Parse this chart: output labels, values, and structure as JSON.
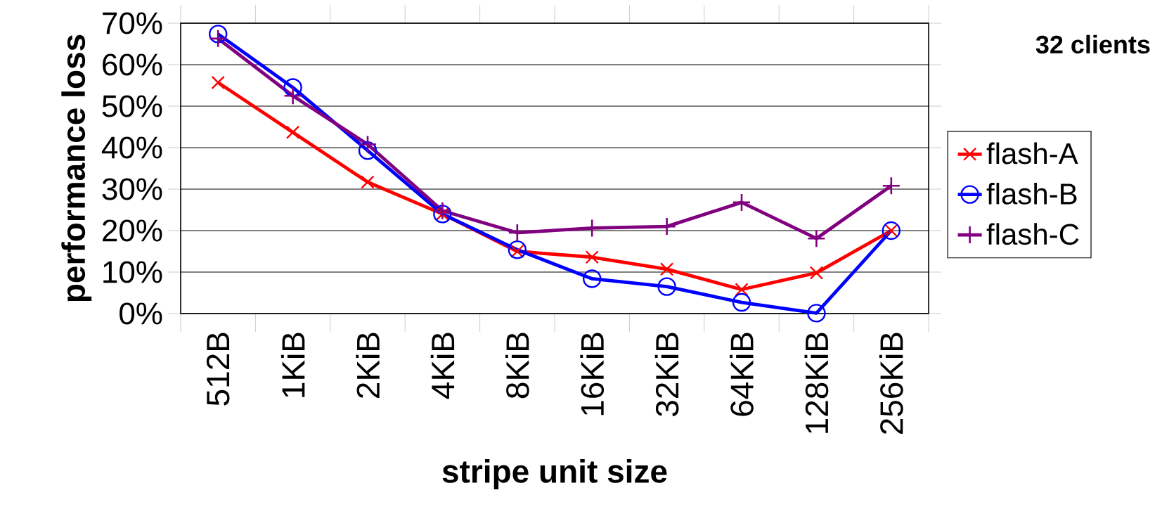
{
  "chart_data": {
    "type": "line",
    "title": "32 clients",
    "xlabel": "stripe unit size",
    "ylabel": "performance loss",
    "categories": [
      "512B",
      "1KiB",
      "2KiB",
      "4KiB",
      "8KiB",
      "16KiB",
      "32KiB",
      "64KiB",
      "128KiB",
      "256KiB"
    ],
    "series": [
      {
        "name": "flash-A",
        "color": "#ff0000",
        "marker": "cross",
        "values": [
          55.7,
          43.7,
          31.7,
          24.0,
          15.0,
          13.6,
          10.7,
          5.8,
          9.8,
          20.0
        ]
      },
      {
        "name": "flash-B",
        "color": "#0000ff",
        "marker": "circle",
        "values": [
          67.4,
          54.5,
          39.3,
          24.0,
          15.4,
          8.4,
          6.5,
          2.7,
          0.1,
          20.0
        ]
      },
      {
        "name": "flash-C",
        "color": "#800080",
        "marker": "cross",
        "values": [
          66.3,
          52.5,
          40.8,
          24.8,
          19.5,
          20.6,
          21.0,
          26.8,
          18.1,
          30.8
        ]
      }
    ],
    "ylim": [
      0,
      70
    ],
    "yticks": [
      {
        "value": 0,
        "label": "0%"
      },
      {
        "value": 10,
        "label": "10%"
      },
      {
        "value": 20,
        "label": "20%"
      },
      {
        "value": 30,
        "label": "30%"
      },
      {
        "value": 40,
        "label": "40%"
      },
      {
        "value": 50,
        "label": "50%"
      },
      {
        "value": 60,
        "label": "60%"
      },
      {
        "value": 70,
        "label": "70%"
      }
    ],
    "grid": "y",
    "legend": "right",
    "line_style": "solid"
  }
}
